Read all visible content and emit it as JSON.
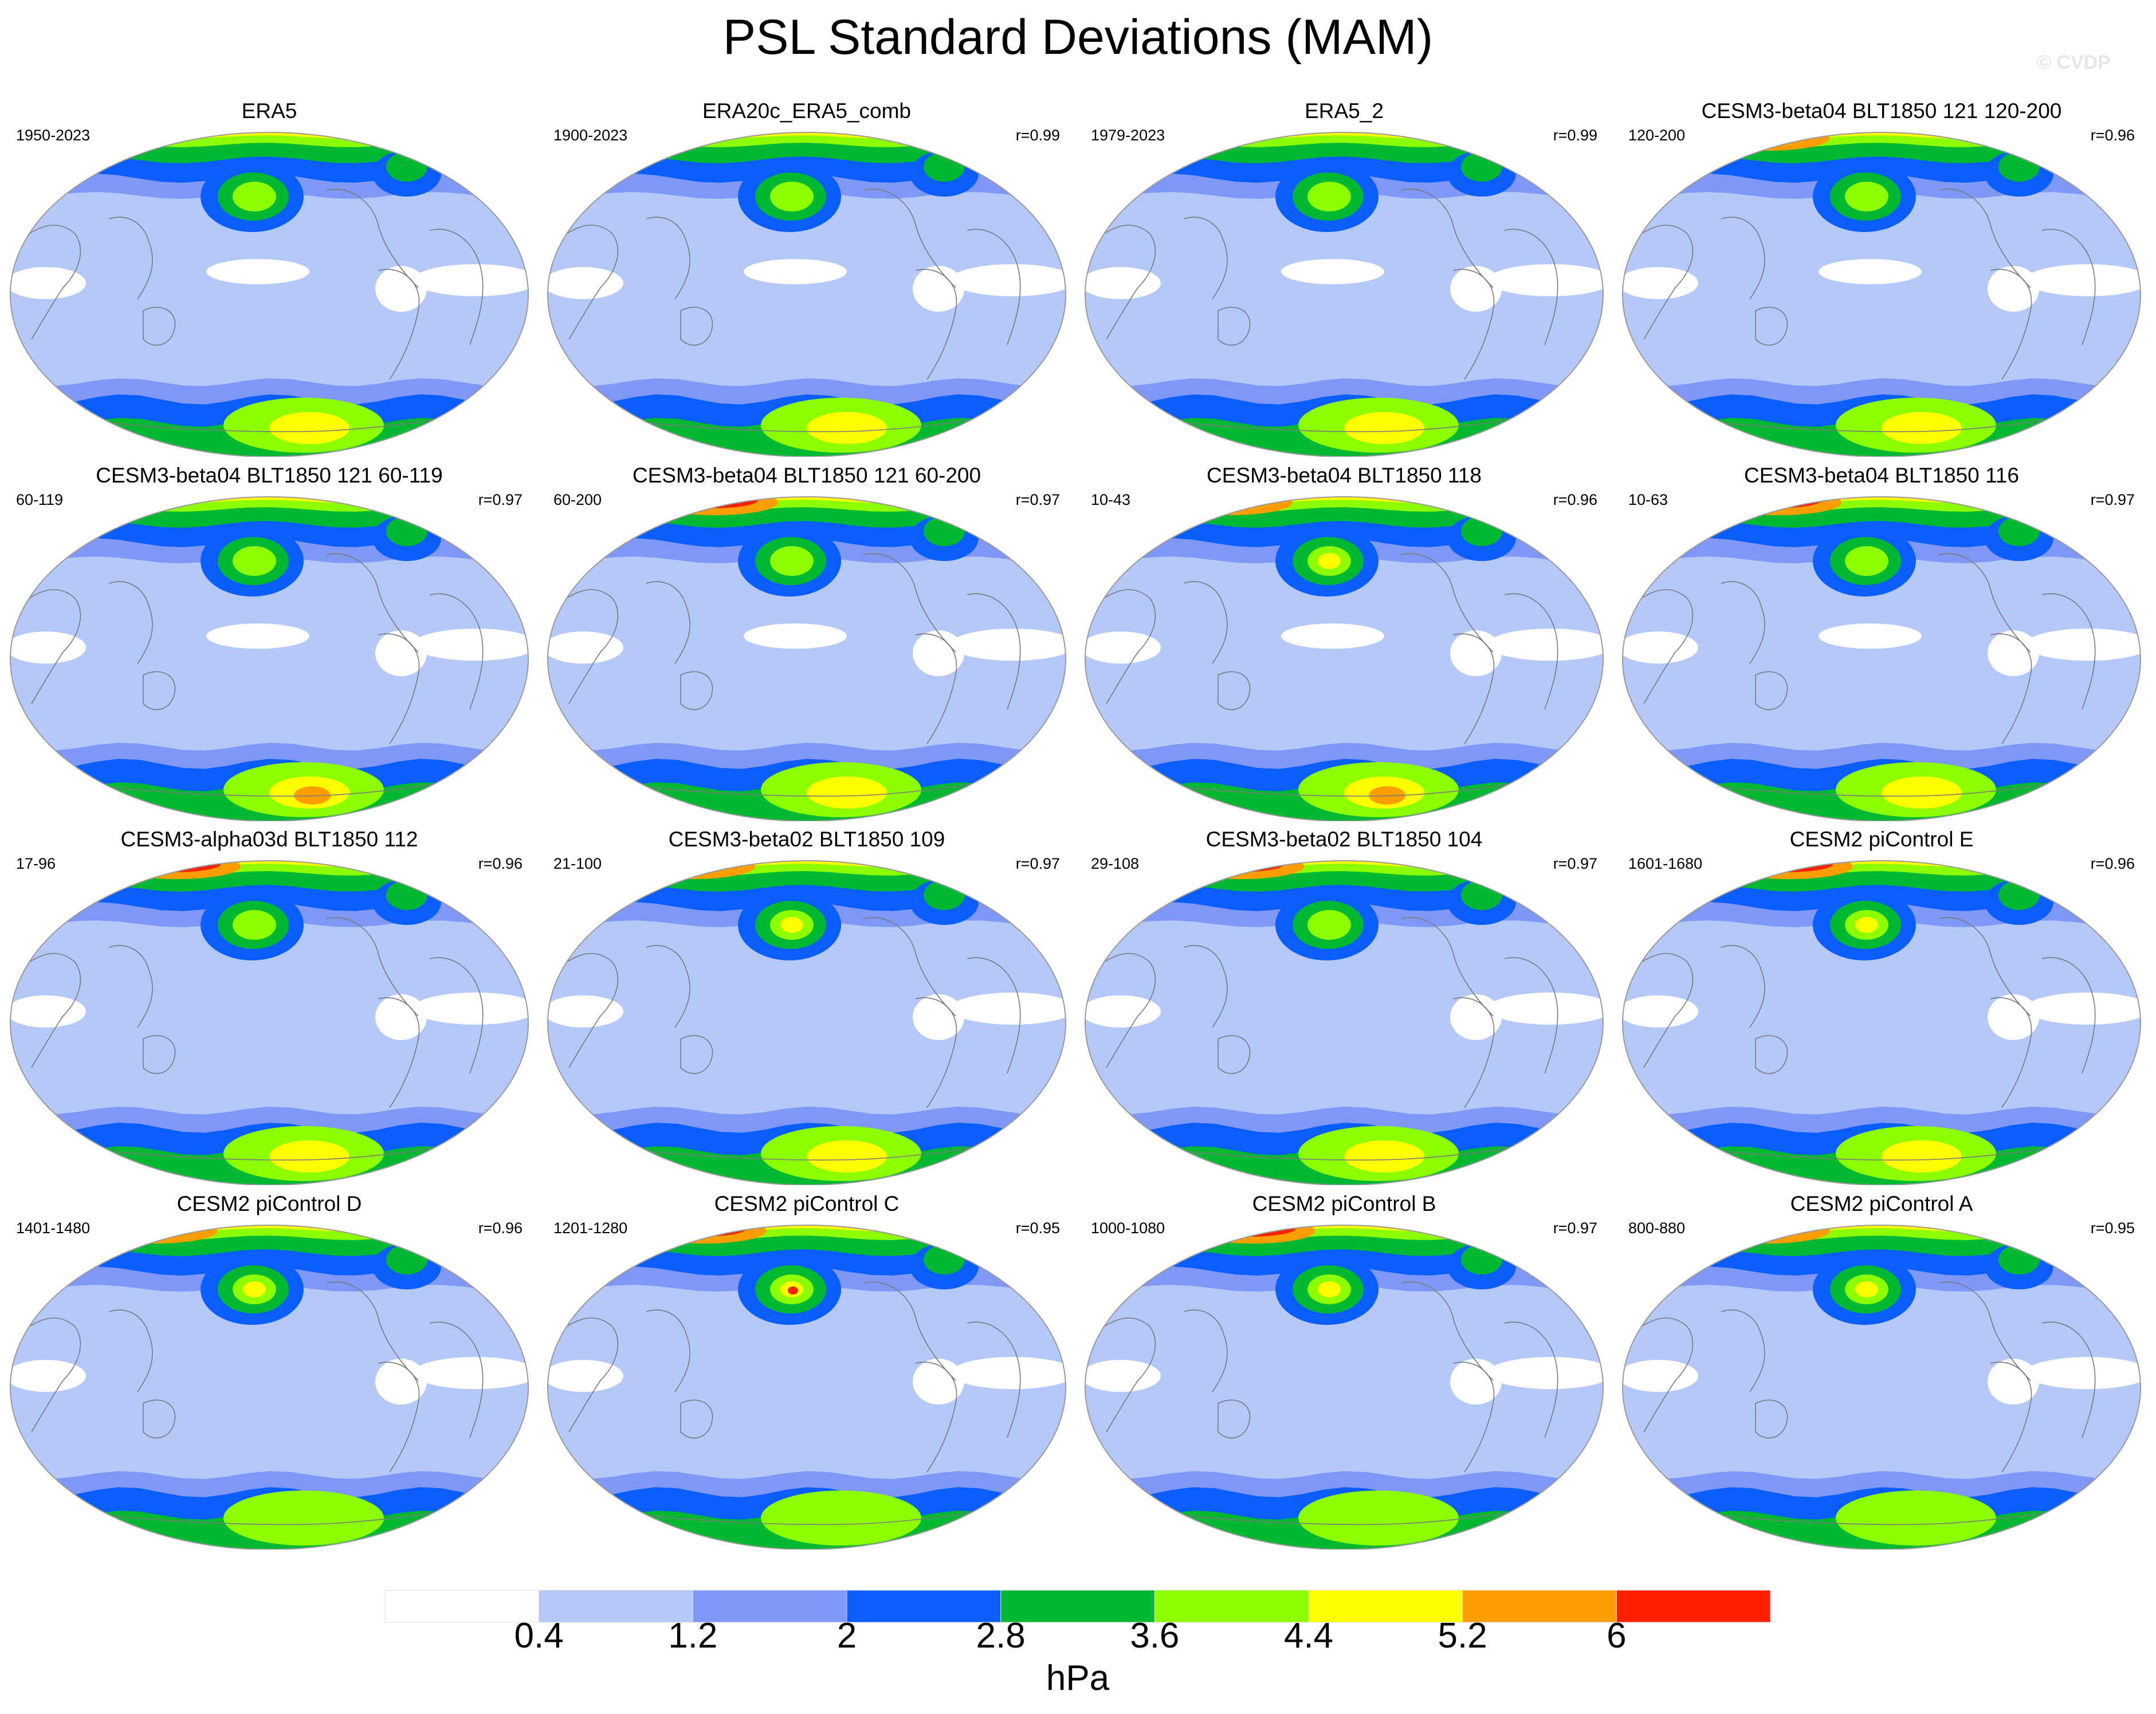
{
  "title": "PSL Standard Deviations (MAM)",
  "watermark": "© CVDP",
  "colorbar": {
    "levels": [
      "0.4",
      "1.2",
      "2",
      "2.8",
      "3.6",
      "4.4",
      "5.2",
      "6"
    ],
    "colors": [
      "#ffffff",
      "#b4c8fa",
      "#7f98f8",
      "#0a5dff",
      "#00b832",
      "#8cff00",
      "#ffff00",
      "#ff9e00",
      "#ff2000"
    ],
    "units": "hPa"
  },
  "panels": [
    {
      "title": "ERA5",
      "years": "1950-2023",
      "r": ""
    },
    {
      "title": "ERA20c_ERA5_comb",
      "years": "1900-2023",
      "r": "r=0.99"
    },
    {
      "title": "ERA5_2",
      "years": "1979-2023",
      "r": "r=0.99"
    },
    {
      "title": "CESM3-beta04 BLT1850 121 120-200",
      "years": "120-200",
      "r": "r=0.96"
    },
    {
      "title": "CESM3-beta04 BLT1850 121 60-119",
      "years": "60-119",
      "r": "r=0.97"
    },
    {
      "title": "CESM3-beta04 BLT1850 121 60-200",
      "years": "60-200",
      "r": "r=0.97"
    },
    {
      "title": "CESM3-beta04 BLT1850 118",
      "years": "10-43",
      "r": "r=0.96"
    },
    {
      "title": "CESM3-beta04 BLT1850 116",
      "years": "10-63",
      "r": "r=0.97"
    },
    {
      "title": "CESM3-alpha03d BLT1850 112",
      "years": "17-96",
      "r": "r=0.96"
    },
    {
      "title": "CESM3-beta02 BLT1850 109",
      "years": "21-100",
      "r": "r=0.97"
    },
    {
      "title": "CESM3-beta02 BLT1850 104",
      "years": "29-108",
      "r": "r=0.97"
    },
    {
      "title": "CESM2 piControl E",
      "years": "1601-1680",
      "r": "r=0.96"
    },
    {
      "title": "CESM2 piControl D",
      "years": "1401-1480",
      "r": "r=0.96"
    },
    {
      "title": "CESM2 piControl C",
      "years": "1201-1280",
      "r": "r=0.95"
    },
    {
      "title": "CESM2 piControl B",
      "years": "1000-1080",
      "r": "r=0.97"
    },
    {
      "title": "CESM2 piControl A",
      "years": "800-880",
      "r": "r=0.95"
    }
  ]
}
